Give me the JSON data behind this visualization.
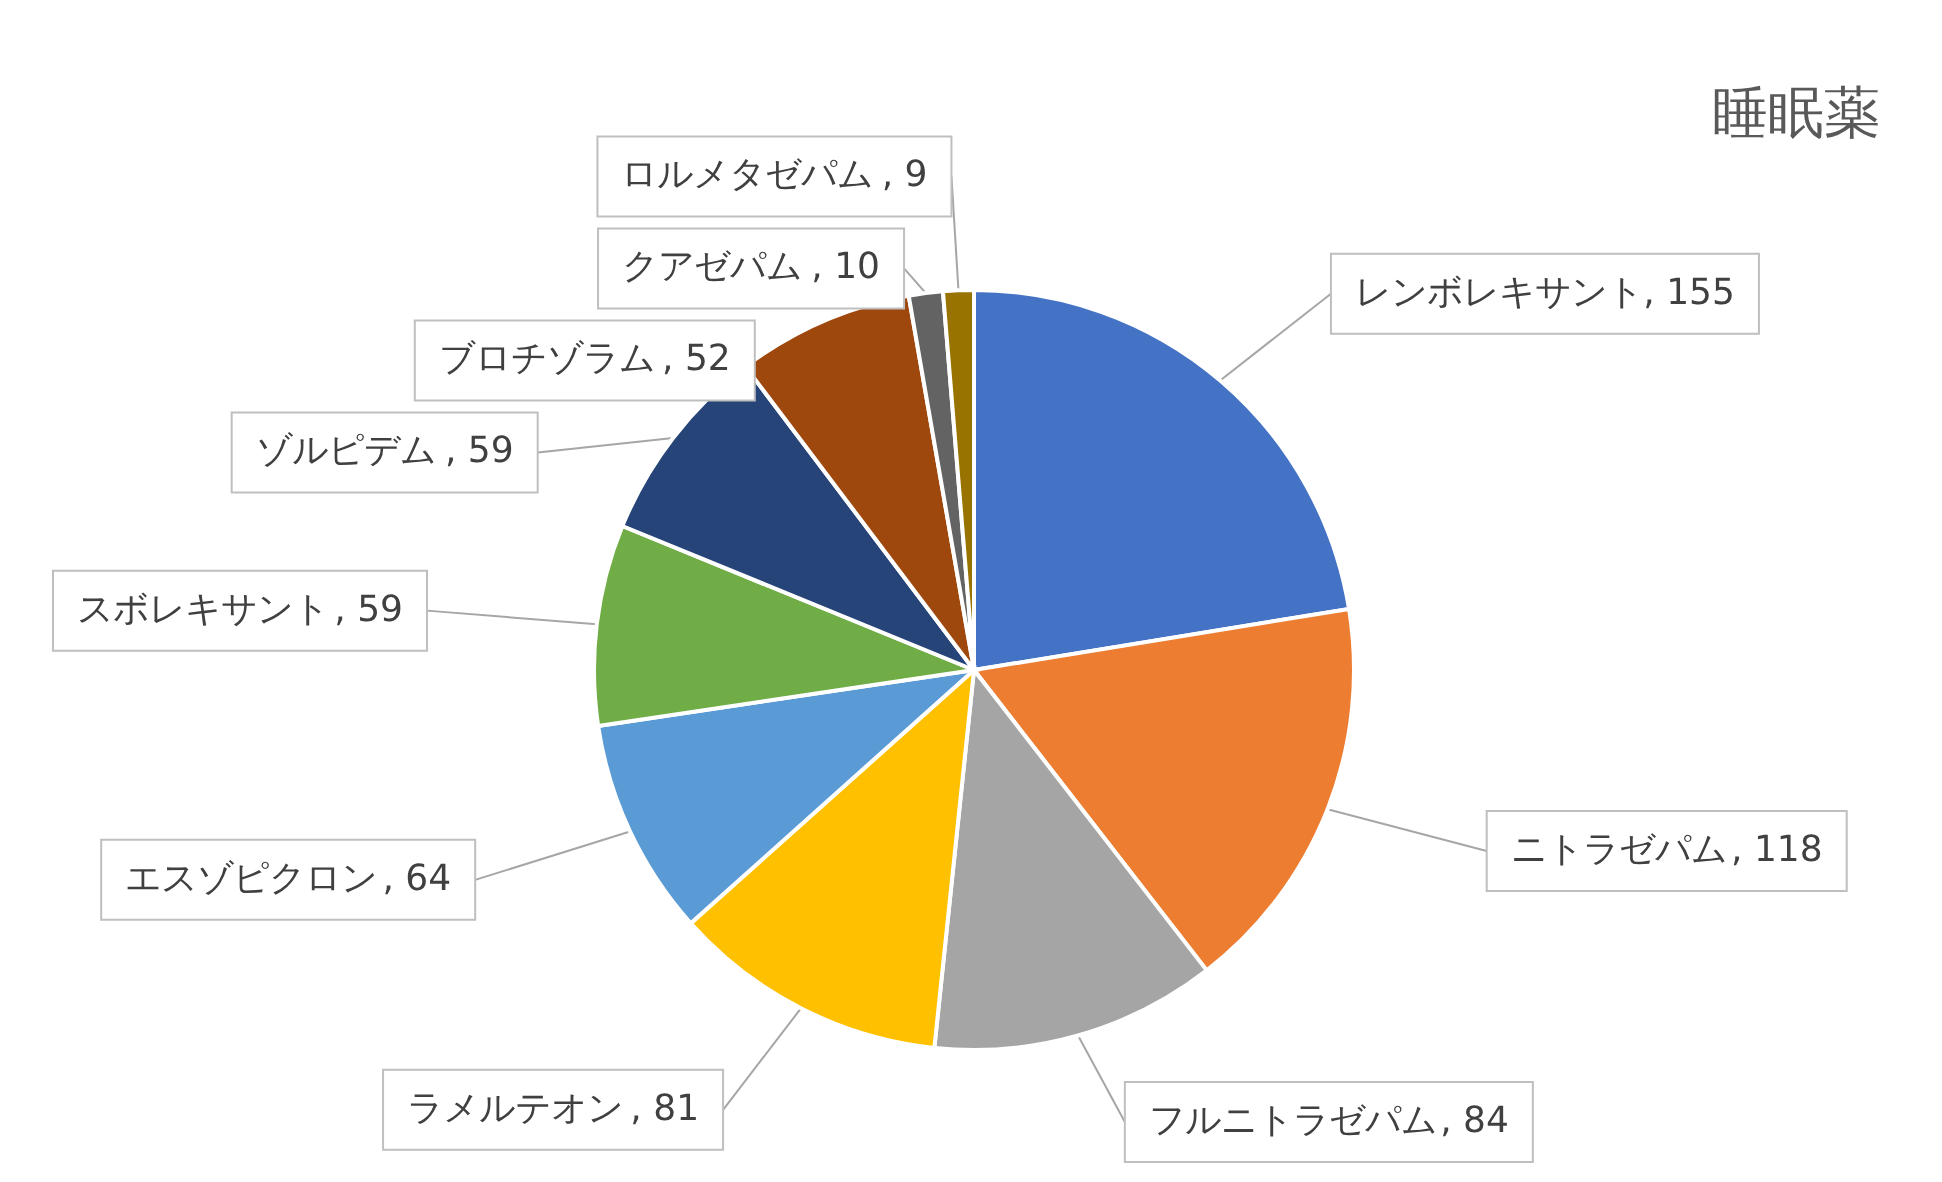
{
  "chart_data": {
    "type": "pie",
    "title": "睡眠薬",
    "categories": [
      "レンボレキサント",
      "ニトラゼパム",
      "フルニトラゼパム",
      "ラメルテオン",
      "エスゾピクロン",
      "スボレキサント",
      "ゾルピデム",
      "ブロチゾラム",
      "クアゼパム",
      "ロルメタゼパム"
    ],
    "values": [
      155,
      118,
      84,
      81,
      64,
      59,
      59,
      52,
      10,
      9
    ],
    "colors": [
      "#4472c4",
      "#ed7d31",
      "#a5a5a5",
      "#ffc000",
      "#5b9bd5",
      "#70ad47",
      "#264478",
      "#9e480e",
      "#636363",
      "#997300"
    ],
    "value_labels": [
      ", 155",
      ", 118",
      ", 84",
      ", 81",
      ", 64",
      ", 59",
      ", 59",
      ", 52",
      ", 10",
      ", 9"
    ]
  }
}
